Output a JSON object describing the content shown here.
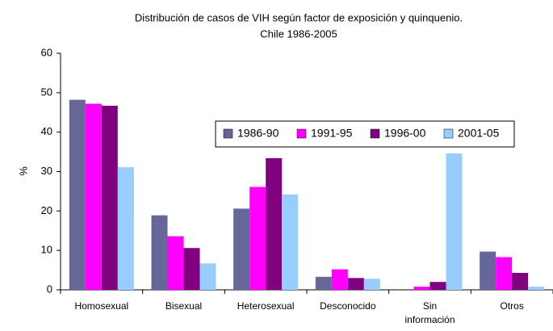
{
  "chart_data": {
    "type": "bar",
    "title": [
      "Distribución de casos de VIH según factor de exposición y quinquenio.",
      "Chile 1986-2005"
    ],
    "y_label": "%",
    "categories": [
      "Homosexual",
      "Bisexual",
      "Heterosexual",
      "Desconocido",
      "Sin información",
      "Otros"
    ],
    "series": [
      {
        "name": "1986-90",
        "color": "#666699",
        "values": [
          48.2,
          18.9,
          20.6,
          3.3,
          0,
          9.7
        ]
      },
      {
        "name": "1991-95",
        "color": "#ff00ff",
        "values": [
          47.2,
          13.6,
          26.1,
          5.2,
          0.8,
          8.3
        ]
      },
      {
        "name": "1996-00",
        "color": "#800080",
        "values": [
          46.7,
          10.6,
          33.4,
          3.0,
          2.0,
          4.3
        ]
      },
      {
        "name": "2001-05",
        "color": "#99ccff",
        "values": [
          31.1,
          6.7,
          24.2,
          2.8,
          34.6,
          0.8
        ]
      }
    ],
    "ylim": [
      0,
      60
    ],
    "yticks": [
      0,
      10,
      20,
      30,
      40,
      50,
      60
    ],
    "grid": false,
    "legend": "upper right"
  }
}
